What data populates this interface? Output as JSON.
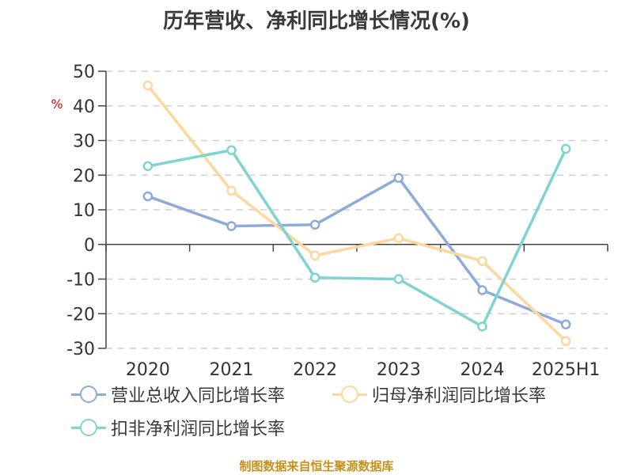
{
  "title": "历年营收、净利同比增长情况(%)",
  "footer": "制图数据来自恒生聚源数据库",
  "y_unit": "%",
  "legend": [
    {
      "label": "营业总收入同比增长率",
      "color": "#8eaadc"
    },
    {
      "label": "归母净利润同比增长率",
      "color": "#fdd89c"
    },
    {
      "label": "扣非净利润同比增长率",
      "color": "#7fd3d1"
    }
  ],
  "chart_data": {
    "type": "line",
    "title": "历年营收、净利同比增长情况(%)",
    "xlabel": "",
    "ylabel": "%",
    "categories": [
      "2020",
      "2021",
      "2022",
      "2023",
      "2024",
      "2025H1"
    ],
    "ylim": [
      -30,
      50
    ],
    "yticks": [
      50,
      40,
      30,
      20,
      10,
      0,
      -10,
      -20,
      -30
    ],
    "grid": "dashed horizontal",
    "legend_position": "bottom",
    "series": [
      {
        "name": "营业总收入同比增长率",
        "color": "#8eaadc",
        "values": [
          13.9,
          5.3,
          5.7,
          19.2,
          -13.2,
          -23.1
        ]
      },
      {
        "name": "归母净利润同比增长率",
        "color": "#fdd89c",
        "values": [
          45.9,
          15.5,
          -3.2,
          1.8,
          -4.8,
          -27.9
        ]
      },
      {
        "name": "扣非净利润同比增长率",
        "color": "#7fd3d1",
        "values": [
          22.6,
          27.2,
          -9.6,
          -10.0,
          -23.7,
          27.6
        ]
      }
    ]
  }
}
